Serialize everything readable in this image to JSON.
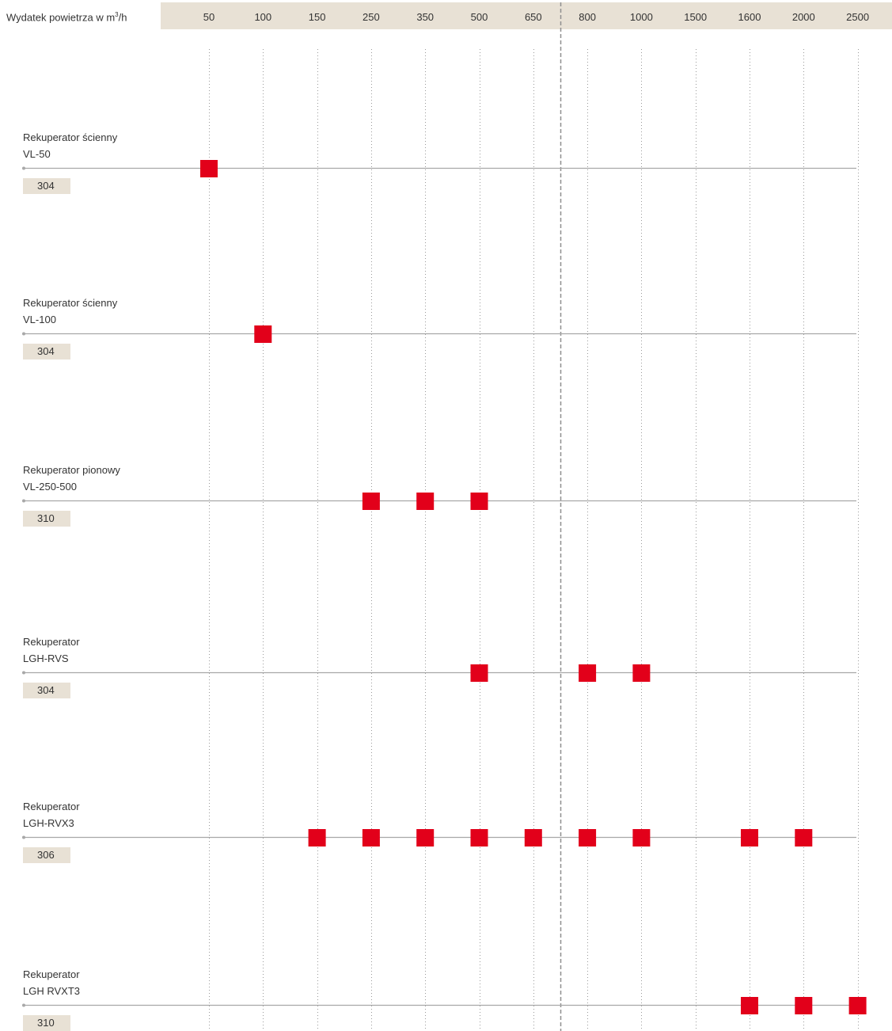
{
  "chart_data": {
    "type": "scatter",
    "xlabel": "Wydatek powietrza w m³/h",
    "xlabel_main": "Wydatek powietrza w m",
    "xlabel_sup": "3",
    "xlabel_suffix": "/h",
    "x_categories": [
      "50",
      "100",
      "150",
      "250",
      "350",
      "500",
      "650",
      "800",
      "1000",
      "1500",
      "1600",
      "2000",
      "2500"
    ],
    "series": [
      {
        "label_line1": "Rekuperator ścienny",
        "label_line2": "VL-50",
        "page": "304",
        "values": [
          "50"
        ]
      },
      {
        "label_line1": "Rekuperator ścienny",
        "label_line2": "VL-100",
        "page": "304",
        "values": [
          "100"
        ]
      },
      {
        "label_line1": "Rekuperator pionowy",
        "label_line2": "VL-250-500",
        "page": "310",
        "values": [
          "250",
          "350",
          "500"
        ]
      },
      {
        "label_line1": "Rekuperator",
        "label_line2": "LGH-RVS",
        "page": "304",
        "values": [
          "500",
          "800",
          "1000"
        ]
      },
      {
        "label_line1": "Rekuperator",
        "label_line2": "LGH-RVX3",
        "page": "306",
        "values": [
          "150",
          "250",
          "350",
          "500",
          "650",
          "800",
          "1000",
          "1600",
          "2000"
        ]
      },
      {
        "label_line1": "Rekuperator",
        "label_line2": "LGH RVXT3",
        "page": "310",
        "values": [
          "1600",
          "2000",
          "2500"
        ]
      }
    ],
    "grid": "vertical dotted",
    "divider_after": "650",
    "colors": {
      "marker": "#e2001a",
      "band": "#e8e1d5",
      "line": "#a8a8a8",
      "grid": "#9a9a9a",
      "text": "#333333"
    }
  }
}
